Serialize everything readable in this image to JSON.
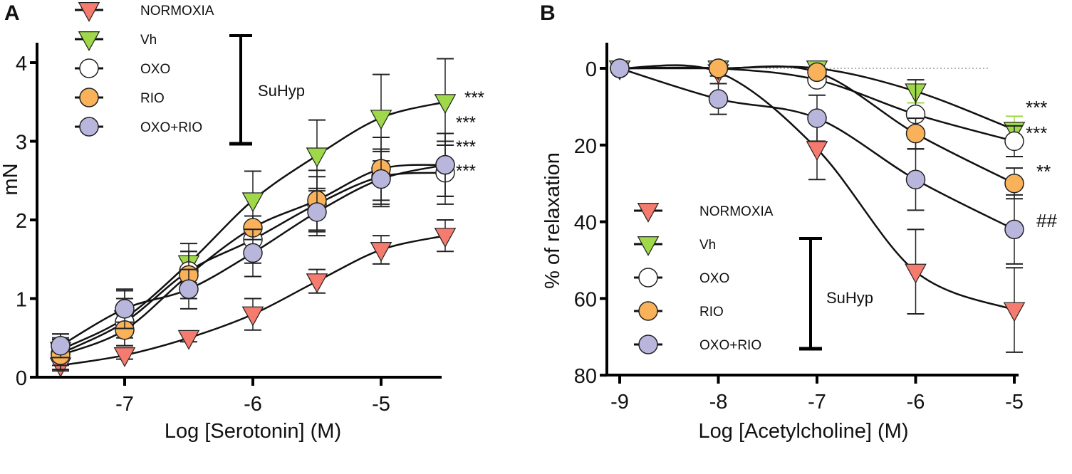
{
  "colors": {
    "NORMOXIA": "#f47b6e",
    "Vh": "#9fd94a",
    "OXO": "#ffffff",
    "RIO": "#f9b25a",
    "OXO+RIO": "#b9b6dd"
  },
  "chart_data": [
    {
      "panel_label": "A",
      "type": "line",
      "xlabel": "Log [Serotonin] (M)",
      "ylabel": "mN",
      "xlim": [
        -7.6,
        -4.45
      ],
      "ylim": [
        0,
        4.2
      ],
      "xticks": [
        -7,
        -6,
        -5
      ],
      "xtick_labels": [
        "-7",
        "-6",
        "-5"
      ],
      "yticks": [
        0,
        1,
        2,
        3,
        4
      ],
      "ytick_labels": [
        "0",
        "1",
        "2",
        "3",
        "4"
      ],
      "x": [
        -7.5,
        -7,
        -6.5,
        -6,
        -5.5,
        -5,
        -4.5
      ],
      "legend_placement": "top-left",
      "bracket_label": "SuHyp",
      "series": [
        {
          "name": "NORMOXIA",
          "marker": "triangle-down",
          "values": [
            0.15,
            0.28,
            0.5,
            0.8,
            1.22,
            1.62,
            1.8
          ],
          "errors": [
            0.05,
            0.05,
            0.05,
            0.2,
            0.15,
            0.18,
            0.2
          ]
        },
        {
          "name": "Vh",
          "marker": "triangle-down",
          "values": [
            0.35,
            0.75,
            1.45,
            2.25,
            2.82,
            3.3,
            3.5
          ],
          "errors": [
            0.2,
            0.35,
            0.25,
            0.37,
            0.45,
            0.55,
            0.55
          ]
        },
        {
          "name": "OXO",
          "marker": "circle",
          "values": [
            0.3,
            0.7,
            1.35,
            1.75,
            2.2,
            2.55,
            2.6
          ],
          "errors": [
            0.2,
            0.3,
            0.25,
            0.3,
            0.35,
            0.35,
            0.4
          ]
        },
        {
          "name": "RIO",
          "marker": "circle",
          "values": [
            0.28,
            0.6,
            1.3,
            1.9,
            2.25,
            2.65,
            2.7
          ],
          "errors": [
            0.2,
            0.1,
            0.3,
            0.15,
            0.38,
            0.4,
            0.4
          ]
        },
        {
          "name": "OXO+RIO",
          "marker": "circle",
          "values": [
            0.4,
            0.87,
            1.12,
            1.58,
            2.1,
            2.52,
            2.7
          ],
          "errors": [
            0.15,
            0.25,
            0.25,
            0.3,
            0.3,
            0.35,
            0.4
          ]
        }
      ],
      "annotations": [
        {
          "text": "***",
          "series": "Vh"
        },
        {
          "text": "***",
          "series": "OXO+RIO"
        },
        {
          "text": "***",
          "series": "RIO"
        },
        {
          "text": "***",
          "series": "OXO"
        }
      ]
    },
    {
      "panel_label": "B",
      "type": "line",
      "xlabel": "Log [Acetylcholine] (M)",
      "ylabel": "% of relaxation",
      "xlim": [
        -9,
        -5
      ],
      "ylim": [
        0,
        80
      ],
      "y_inverted": true,
      "xticks": [
        -9,
        -8,
        -7,
        -6,
        -5
      ],
      "xtick_labels": [
        "-9",
        "-8",
        "-7",
        "-6",
        "-5"
      ],
      "yticks": [
        0,
        20,
        40,
        60,
        80
      ],
      "ytick_labels": [
        "0",
        "20",
        "40",
        "60",
        "80"
      ],
      "x": [
        -9,
        -8,
        -7,
        -6,
        -5
      ],
      "legend_placement": "bottom-left",
      "bracket_label": "SuHyp",
      "reference_line": 0,
      "series": [
        {
          "name": "NORMOXIA",
          "marker": "triangle-down",
          "values": [
            0,
            1,
            21,
            53,
            63
          ],
          "errors": [
            0,
            1,
            8,
            11,
            11
          ]
        },
        {
          "name": "Vh",
          "marker": "triangle-down",
          "values": [
            0,
            0,
            0,
            6,
            16
          ],
          "errors": [
            0,
            0,
            0,
            3,
            3.5
          ]
        },
        {
          "name": "OXO",
          "marker": "circle",
          "values": [
            0,
            0,
            3,
            12,
            19
          ],
          "errors": [
            0,
            0,
            1,
            9,
            4
          ]
        },
        {
          "name": "RIO",
          "marker": "circle",
          "values": [
            0,
            0,
            1,
            17,
            30
          ],
          "errors": [
            0,
            0,
            0,
            4,
            4
          ]
        },
        {
          "name": "OXO+RIO",
          "marker": "circle",
          "values": [
            0,
            8,
            13,
            29,
            42
          ],
          "errors": [
            0,
            4,
            6,
            8,
            9
          ]
        }
      ],
      "annotations": [
        {
          "text": "***",
          "series": "Vh"
        },
        {
          "text": "***",
          "series": "OXO"
        },
        {
          "text": "**",
          "series": "RIO"
        },
        {
          "text": "##",
          "series": "OXO+RIO"
        }
      ]
    }
  ]
}
